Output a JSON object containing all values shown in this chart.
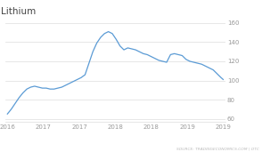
{
  "title": "Lithium",
  "line_color": "#5b9bd5",
  "bg_color": "#ffffff",
  "grid_color": "#dddddd",
  "yticks": [
    60,
    80,
    100,
    120,
    140,
    160
  ],
  "ylim": [
    57,
    165
  ],
  "source_text": "SOURCE: TRADINGECONOMICS.COM | OTC",
  "x_labels": [
    "2016",
    "2017",
    "2017",
    "2018",
    "2018",
    "2019",
    "2019"
  ],
  "data_x": [
    0.0,
    0.018,
    0.036,
    0.054,
    0.072,
    0.09,
    0.108,
    0.126,
    0.144,
    0.162,
    0.18,
    0.198,
    0.216,
    0.234,
    0.252,
    0.27,
    0.288,
    0.306,
    0.324,
    0.342,
    0.36,
    0.378,
    0.396,
    0.414,
    0.432,
    0.45,
    0.468,
    0.486,
    0.504,
    0.522,
    0.54,
    0.558,
    0.576,
    0.594,
    0.612,
    0.63,
    0.648,
    0.666,
    0.684,
    0.702,
    0.72,
    0.738,
    0.756,
    0.774,
    0.792,
    0.81,
    0.828,
    0.846,
    0.864,
    0.882,
    0.9,
    0.918,
    0.936,
    0.954,
    0.972,
    0.99,
    1.0
  ],
  "data_y": [
    65,
    70,
    76,
    82,
    87,
    91,
    93,
    94,
    93,
    92,
    92,
    91,
    91,
    92,
    93,
    95,
    97,
    99,
    101,
    103,
    106,
    118,
    130,
    139,
    145,
    149,
    151,
    149,
    143,
    136,
    132,
    134,
    133,
    132,
    130,
    128,
    127,
    125,
    123,
    121,
    120,
    119,
    127,
    128,
    127,
    126,
    122,
    120,
    119,
    118,
    117,
    115,
    113,
    111,
    107,
    103,
    101
  ],
  "xlim": [
    -0.01,
    1.01
  ],
  "title_fontsize": 7.5,
  "tick_fontsize": 5,
  "source_fontsize": 3.2,
  "line_width": 0.9
}
